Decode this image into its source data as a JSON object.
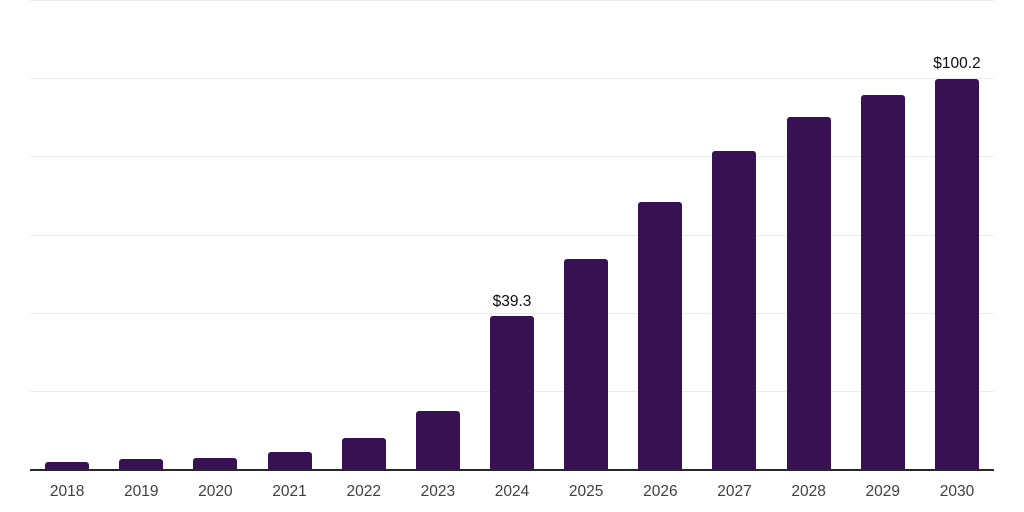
{
  "chart_data": {
    "type": "bar",
    "title": "",
    "xlabel": "",
    "ylabel": "",
    "categories": [
      "2018",
      "2019",
      "2020",
      "2021",
      "2022",
      "2023",
      "2024",
      "2025",
      "2026",
      "2027",
      "2028",
      "2029",
      "2030"
    ],
    "values": [
      2.0,
      2.7,
      3.0,
      4.7,
      8.2,
      15.2,
      39.3,
      54.0,
      68.7,
      81.7,
      90.3,
      96.0,
      100.2
    ],
    "bar_labels": [
      "",
      "",
      "",
      "",
      "",
      "",
      "$39.3",
      "",
      "",
      "",
      "",
      "",
      "$100.2"
    ],
    "ylim": [
      0,
      120
    ],
    "grid_values": [
      20,
      40,
      60,
      80,
      100,
      120
    ],
    "grid": true,
    "legend_position": "none",
    "y_tick_labels_visible": false,
    "currency_prefix": "$"
  },
  "style": {
    "background_color": "#FFFFFF",
    "bar_color": "#371151",
    "grid_color": "#ECECEC",
    "axis_color": "#262626",
    "tick_label_color": "#404040",
    "value_label_color": "#0D0D0D"
  }
}
